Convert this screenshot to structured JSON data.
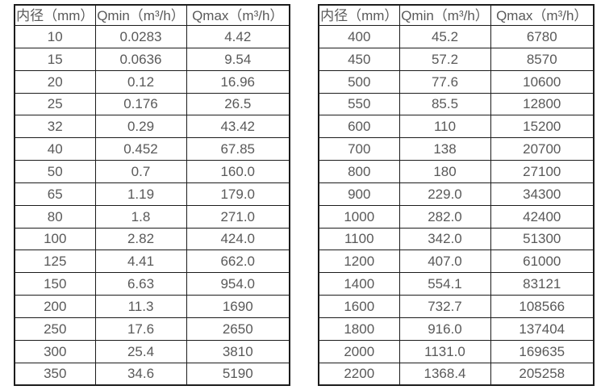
{
  "colors": {
    "text": "#595959",
    "border": "#1c1c1c",
    "background": "#ffffff"
  },
  "tables": [
    {
      "name": "flow-table-small-diameters",
      "headers": [
        "内径（mm）",
        "Qmin（m³/h）",
        "Qmax（m³/h）"
      ],
      "rows": [
        [
          "10",
          "0.0283",
          "4.42"
        ],
        [
          "15",
          "0.0636",
          "9.54"
        ],
        [
          "20",
          "0.12",
          "16.96"
        ],
        [
          "25",
          "0.176",
          "26.5"
        ],
        [
          "32",
          "0.29",
          "43.42"
        ],
        [
          "40",
          "0.452",
          "67.85"
        ],
        [
          "50",
          "0.7",
          "160.0"
        ],
        [
          "65",
          "1.19",
          "179.0"
        ],
        [
          "80",
          "1.8",
          "271.0"
        ],
        [
          "100",
          "2.82",
          "424.0"
        ],
        [
          "125",
          "4.41",
          "662.0"
        ],
        [
          "150",
          "6.63",
          "954.0"
        ],
        [
          "200",
          "11.3",
          "1690"
        ],
        [
          "250",
          "17.6",
          "2650"
        ],
        [
          "300",
          "25.4",
          "3810"
        ],
        [
          "350",
          "34.6",
          "5190"
        ]
      ]
    },
    {
      "name": "flow-table-large-diameters",
      "headers": [
        "内径（mm）",
        "Qmin（m³/h）",
        "Qmax（m³/h）"
      ],
      "rows": [
        [
          "400",
          "45.2",
          "6780"
        ],
        [
          "450",
          "57.2",
          "8570"
        ],
        [
          "500",
          "77.6",
          "10600"
        ],
        [
          "550",
          "85.5",
          "12800"
        ],
        [
          "600",
          "110",
          "15200"
        ],
        [
          "700",
          "138",
          "20700"
        ],
        [
          "800",
          "180",
          "27100"
        ],
        [
          "900",
          "229.0",
          "34300"
        ],
        [
          "1000",
          "282.0",
          "42400"
        ],
        [
          "1100",
          "342.0",
          "51300"
        ],
        [
          "1200",
          "407.0",
          "61000"
        ],
        [
          "1400",
          "554.1",
          "83121"
        ],
        [
          "1600",
          "732.7",
          "108566"
        ],
        [
          "1800",
          "916.0",
          "137404"
        ],
        [
          "2000",
          "1131.0",
          "169635"
        ],
        [
          "2200",
          "1368.4",
          "205258"
        ]
      ]
    }
  ]
}
